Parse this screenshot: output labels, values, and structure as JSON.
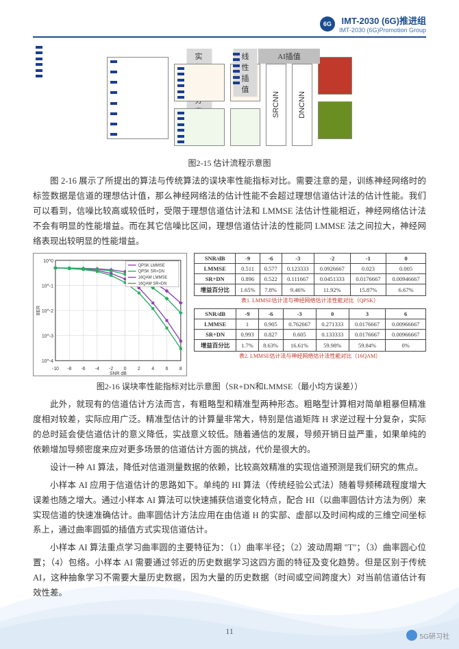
{
  "header": {
    "logo_text": "6G",
    "title": "IMT-2030 (6G)推进组",
    "subtitle": "IMT-2030 (6G)Promotion Group"
  },
  "fig215": {
    "labels": {
      "stage1": "实部虚部分离",
      "stage2": "线性插值",
      "stage3": "AI插值"
    },
    "nn": {
      "block1": "SRCNN",
      "block2": "DNCNN"
    },
    "colors": {
      "blue": "#1a3d8f",
      "red": "#c0392b",
      "green": "#6b8e23",
      "grey_box": "#d9d9d9",
      "border": "#888888",
      "lightbg1": "#fdf6ec",
      "lightbg2": "#f0f8ec"
    },
    "caption": "图2-15 估计流程示意图"
  },
  "para1": "图 2-16 展示了所提出的算法与传统算法的误块率性能指标对比。需要注意的是，训练神经网络时的标签数据是信道的理想估计值，那么神经网络法的估计性能不会超过理想信道估计法的估计性能。我们可以看到，信噪比较高或较低时，受限于理想信道估计法和 LMMSE 法估计性能相近，神经网络估计法不会有明显的性能增益。而在其它信噪比区间，理想信道估计法的性能同 LMMSE 法之间拉大，神经网络表现出较明显的性能增益。",
  "fig216": {
    "chart": {
      "type": "line",
      "xlabel": "SNR dB",
      "ylabel": "BER",
      "xlim": [
        -10,
        8
      ],
      "ylim_log": [
        0.0001,
        1
      ],
      "xticks": [
        -10,
        -8,
        -6,
        -4,
        -2,
        0,
        2,
        4,
        6,
        8
      ],
      "yticks_log": [
        -4,
        -3,
        -2,
        -1,
        0
      ],
      "grid_color": "#cccccc",
      "series": [
        {
          "name": "QPSK LMMSE",
          "color": "#8e44ad",
          "marker": "square",
          "x": [
            -10,
            -8,
            -6,
            -4,
            -2,
            0,
            2,
            4,
            6,
            8
          ],
          "y": [
            0.5,
            0.48,
            0.45,
            0.4,
            0.3,
            0.18,
            0.08,
            0.02,
            0.004,
            0.0006
          ]
        },
        {
          "name": "QPSK SR+DN",
          "color": "#27ae60",
          "marker": "square",
          "x": [
            -10,
            -8,
            -6,
            -4,
            -2,
            0,
            2,
            4,
            6,
            8
          ],
          "y": [
            0.5,
            0.47,
            0.43,
            0.36,
            0.25,
            0.13,
            0.05,
            0.012,
            0.002,
            0.0003
          ]
        },
        {
          "name": "16QAM LMMSE",
          "color": "#8e44ad",
          "marker": "diamond",
          "x": [
            -10,
            -8,
            -6,
            -4,
            -2,
            0,
            2,
            4,
            6,
            8
          ],
          "y": [
            0.5,
            0.49,
            0.48,
            0.46,
            0.42,
            0.35,
            0.25,
            0.14,
            0.06,
            0.02
          ]
        },
        {
          "name": "16QAM SR+DN",
          "color": "#27ae60",
          "marker": "diamond",
          "x": [
            -10,
            -8,
            -6,
            -4,
            -2,
            0,
            2,
            4,
            6,
            8
          ],
          "y": [
            0.5,
            0.49,
            0.47,
            0.44,
            0.38,
            0.28,
            0.17,
            0.08,
            0.03,
            0.008
          ]
        }
      ],
      "legend_pos": "upper right",
      "title_fontsize": 9
    },
    "table_a": {
      "header": [
        "SNR/dB",
        "-9",
        "-6",
        "-3",
        "-2",
        "-1",
        "0"
      ],
      "rows": [
        [
          "LMMSE",
          "0.511",
          "0.577",
          "0.123333",
          "0.0926667",
          "0.023",
          "0.005"
        ],
        [
          "SR+DN",
          "0.896",
          "0.522",
          "0.111667",
          "0.0451333",
          "0.0176667",
          "0.00946667"
        ],
        [
          "增益百分比",
          "1.65%",
          "7.8%",
          "9.46%",
          "11.92%",
          "15.87%",
          "6.67%"
        ]
      ],
      "caption": "表1. LMMSE估计法与神经网络估计法性能对比（QPSK）"
    },
    "table_b": {
      "header": [
        "SNR/dB",
        "-9",
        "-6",
        "-3",
        "0",
        "3",
        "6"
      ],
      "rows": [
        [
          "LMMSE",
          "1",
          "0.905",
          "0.762667",
          "0.271333",
          "0.0176667",
          "0.00966667"
        ],
        [
          "SR+DN",
          "0.993",
          "0.827",
          "0.605",
          "0.133333",
          "0.0176667",
          "0.00966667"
        ],
        [
          "增益百分比",
          "1.7%",
          "8.63%",
          "16.61%",
          "59.98%",
          "59.84%",
          "0%"
        ]
      ],
      "caption": "表2. LMMSE估计法与神经网络估计法性能对比（16QAM）"
    },
    "caption": "图2-16 误块率性能指标对比示意图（SR+DN和LMMSE（最小均方误差））"
  },
  "para2": "此外，就现有的信道估计方法而言，有粗略型和精准型两种形态。粗略型计算相对简单粗暴但精准度相对较差，实际应用广泛。精准型估计的计算量非常大，特别是信道矩阵 H 求逆过程十分复杂，实际的总时延会使信道估计的意义降低，实战意义较低。随着通信的发展，导频开销日益严重，如果单纯的依赖增加导频密度来应对更多场景的信道估计方面的挑战，代价是很大的。",
  "para3": "设计一种 AI 算法，降低对信道测量数据的依赖，比较高效精准的实现信道预测是我们研究的焦点。",
  "para4": "小样本 AI 应用于信道估计的思路如下。单纯的 HI 算法（传统经验公式法）随着导频稀疏程度增大误差也随之增大。通过小样本 AI 算法可以快速捕获信道变化特点，配合 HI（以曲率圆估计方法为例）来实现信道的快速准确估计。曲率圆估计方法应用在由信道 H 的实部、虚部以及时间构成的三维空间坐标系上，通过曲率圆弧的插值方式实现信道估计。",
  "para5": "小样本 AI 算法重点学习曲率圆的主要特征为：（1）曲率半径；（2）波动周期 \"T\"；（3）曲率圆心位置；（4）包络。小样本 AI 需要通过邻近的历史数据学习这四方面的特征及变化趋势。但是区别于传统 AI，这种抽象学习不需要大量历史数据，因为大量的历史数据（时间或空间跨度大）对当前信道估计有效性差。",
  "page_number": "11",
  "watermark": "5G研习社"
}
